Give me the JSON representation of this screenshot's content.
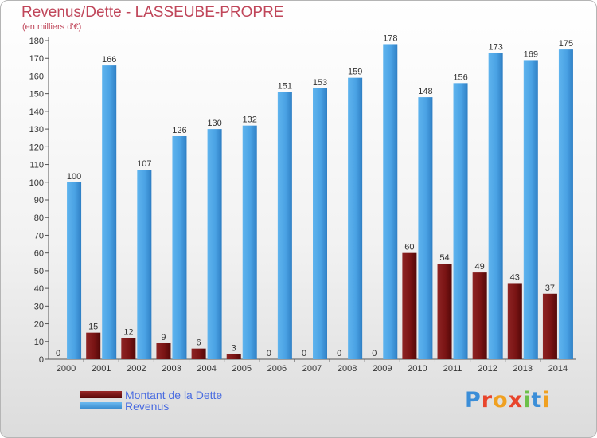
{
  "page": {
    "title": "Revenus/Dette - LASSEUBE-PROPRE",
    "subtitle": "(en milliers d'€)",
    "logo": "Proxiti",
    "colors": {
      "title": "#c0465a",
      "debt": "#7a1414",
      "revenue": "#4ea6e6",
      "legend_text": "#4a6ce0"
    }
  },
  "legend": [
    {
      "label": "Montant de la Dette",
      "color": "#7a1414"
    },
    {
      "label": "Revenus",
      "color": "#4ea6e6"
    }
  ],
  "chart_data": {
    "type": "bar",
    "title": "Revenus/Dette - LASSEUBE-PROPRE",
    "subtitle": "(en milliers d'€)",
    "xlabel": "",
    "ylabel": "",
    "ylim": [
      0,
      180
    ],
    "yticks": [
      0,
      10,
      20,
      30,
      40,
      50,
      60,
      70,
      80,
      90,
      100,
      110,
      120,
      130,
      140,
      150,
      160,
      170,
      180
    ],
    "grid": false,
    "legend_position": "bottom-left",
    "categories": [
      "2000",
      "2001",
      "2002",
      "2003",
      "2004",
      "2005",
      "2006",
      "2007",
      "2008",
      "2009",
      "2010",
      "2011",
      "2012",
      "2013",
      "2014"
    ],
    "series": [
      {
        "name": "Montant de la Dette",
        "color": "#7a1414",
        "values": [
          0,
          15,
          12,
          9,
          6,
          3,
          0,
          0,
          0,
          0,
          60,
          54,
          49,
          43,
          37
        ]
      },
      {
        "name": "Revenus",
        "color": "#4ea6e6",
        "values": [
          100,
          166,
          107,
          126,
          130,
          132,
          151,
          153,
          159,
          178,
          148,
          156,
          173,
          169,
          175
        ]
      }
    ]
  }
}
